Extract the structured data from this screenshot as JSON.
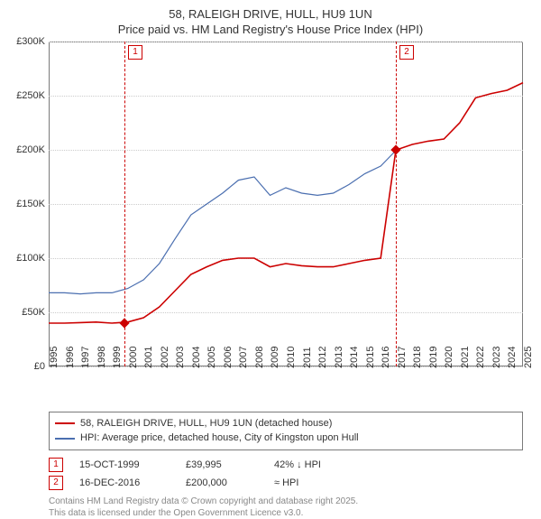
{
  "title_line1": "58, RALEIGH DRIVE, HULL, HU9 1UN",
  "title_line2": "Price paid vs. HM Land Registry's House Price Index (HPI)",
  "chart": {
    "type": "line",
    "background_color": "#ffffff",
    "grid_color": "#cccccc",
    "axis_color": "#7a7a7a",
    "x_years": [
      1995,
      1996,
      1997,
      1998,
      1999,
      2000,
      2001,
      2002,
      2003,
      2004,
      2005,
      2006,
      2007,
      2008,
      2009,
      2010,
      2011,
      2012,
      2013,
      2014,
      2015,
      2016,
      2017,
      2018,
      2019,
      2020,
      2021,
      2022,
      2023,
      2024,
      2025
    ],
    "ylim": [
      0,
      300000
    ],
    "ytick_step": 50000,
    "ytick_labels": [
      "£0",
      "£50K",
      "£100K",
      "£150K",
      "£200K",
      "£250K",
      "£300K"
    ],
    "tick_fontsize": 11,
    "series": [
      {
        "name": "price_paid",
        "label": "58, RALEIGH DRIVE, HULL, HU9 1UN (detached house)",
        "color": "#cc0000",
        "line_width": 1.6,
        "values_by_year": {
          "1995": 40000,
          "1996": 40000,
          "1997": 40500,
          "1998": 41000,
          "1999": 40000,
          "2000": 41000,
          "2001": 45000,
          "2002": 55000,
          "2003": 70000,
          "2004": 85000,
          "2005": 92000,
          "2006": 98000,
          "2007": 100000,
          "2008": 100000,
          "2009": 92000,
          "2010": 95000,
          "2011": 93000,
          "2012": 92000,
          "2013": 92000,
          "2014": 95000,
          "2015": 98000,
          "2016": 100000,
          "2016.96": 200000,
          "2017": 200000,
          "2018": 205000,
          "2019": 208000,
          "2020": 210000,
          "2021": 225000,
          "2022": 248000,
          "2023": 252000,
          "2024": 255000,
          "2025": 262000
        }
      },
      {
        "name": "hpi",
        "label": "HPI: Average price, detached house, City of Kingston upon Hull",
        "color": "#4b6fb0",
        "line_width": 1.2,
        "values_by_year": {
          "1995": 68000,
          "1996": 68000,
          "1997": 67000,
          "1998": 68000,
          "1999": 68000,
          "2000": 72000,
          "2001": 80000,
          "2002": 95000,
          "2003": 118000,
          "2004": 140000,
          "2005": 150000,
          "2006": 160000,
          "2007": 172000,
          "2008": 175000,
          "2009": 158000,
          "2010": 165000,
          "2011": 160000,
          "2012": 158000,
          "2013": 160000,
          "2014": 168000,
          "2015": 178000,
          "2016": 185000,
          "2017": 200000
        }
      }
    ],
    "transactions": [
      {
        "n": "1",
        "year": 1999.79,
        "value": 39995,
        "date_label": "15-OCT-1999",
        "price_label": "£39,995",
        "pct_label": "42% ↓ HPI",
        "marker_color": "#cc0000"
      },
      {
        "n": "2",
        "year": 2016.96,
        "value": 200000,
        "date_label": "16-DEC-2016",
        "price_label": "£200,000",
        "pct_label": "≈ HPI",
        "marker_color": "#cc0000"
      }
    ]
  },
  "footer_line1": "Contains HM Land Registry data © Crown copyright and database right 2025.",
  "footer_line2": "This data is licensed under the Open Government Licence v3.0."
}
